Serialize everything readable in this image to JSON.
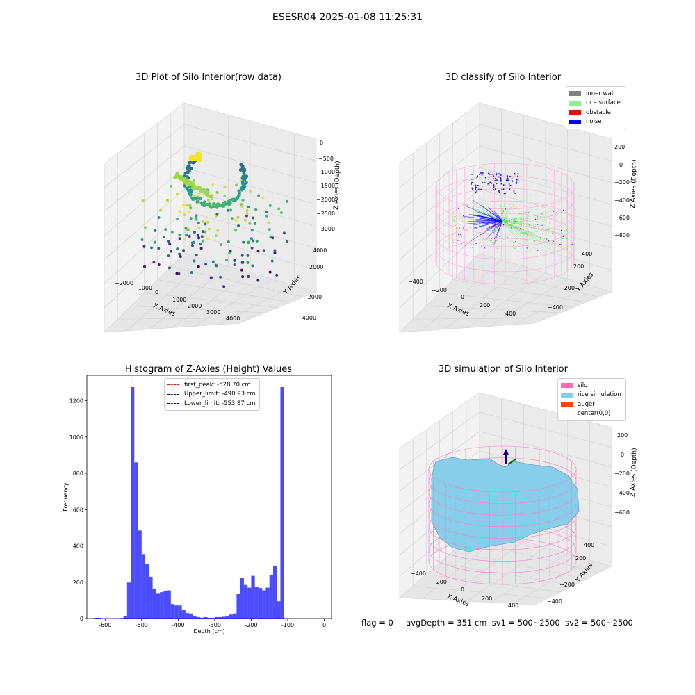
{
  "suptitle": "ESESR04 2025-01-08 11:25:31",
  "status": {
    "flag": "flag = 0",
    "avg_depth": "avgDepth = 351 cm",
    "sv1": "sv1 = 500~2500",
    "sv2": "sv2 = 500~2500"
  },
  "chart_data": [
    {
      "type": "scatter",
      "title": "3D Plot of Silo Interior(row data)",
      "xlabel": "X Axies",
      "ylabel": "Y Axies",
      "zlabel": "Z Axies (Depth)",
      "x_ticks": [
        "−2000",
        "−1000",
        "0",
        "1000",
        "2000",
        "3000",
        "4000"
      ],
      "y_ticks": [
        "−4000",
        "−2000",
        "0",
        "2000",
        "4000"
      ],
      "z_ticks": [
        "0",
        "−500",
        "−1000",
        "−1500",
        "−2000",
        "−2500",
        "−3000"
      ],
      "colormap": "viridis"
    },
    {
      "type": "scatter",
      "title": "3D classify of Silo Interior",
      "xlabel": "X Axies",
      "ylabel": "Y Axies",
      "zlabel": "Z Axies (Depth)",
      "x_ticks": [
        "−400",
        "−200",
        "0",
        "200",
        "400"
      ],
      "y_ticks": [
        "−400",
        "−200",
        "0",
        "200",
        "400"
      ],
      "z_ticks": [
        "200",
        "0",
        "−200",
        "−400",
        "−600",
        "−800"
      ],
      "legend": [
        {
          "label": "inner wall",
          "color": "#808080"
        },
        {
          "label": "rice surface",
          "color": "#90ee90"
        },
        {
          "label": "obstacle",
          "color": "#ff0000"
        },
        {
          "label": "noise",
          "color": "#0000ff"
        }
      ],
      "legend_position": "top-right"
    },
    {
      "type": "bar",
      "title": "Histogram of Z-Axies (Height) Values",
      "xlabel": "Depth (cm)",
      "ylabel": "Frequency",
      "xlim": [
        -650,
        20
      ],
      "ylim": [
        0,
        1340
      ],
      "x_ticks": [
        -600,
        -500,
        -400,
        -300,
        -200,
        -100,
        0
      ],
      "y_ticks": [
        0,
        200,
        400,
        600,
        800,
        1000,
        1200
      ],
      "bar_color": "#0000ff",
      "bin_width": 10,
      "bin_starts": [
        -630,
        -620,
        -570,
        -560,
        -550,
        -540,
        -530,
        -520,
        -510,
        -500,
        -490,
        -480,
        -470,
        -460,
        -450,
        -440,
        -430,
        -420,
        -410,
        -400,
        -390,
        -380,
        -370,
        -360,
        -350,
        -340,
        -330,
        -320,
        -310,
        -300,
        -290,
        -280,
        -270,
        -260,
        -250,
        -240,
        -230,
        -220,
        -210,
        -200,
        -190,
        -180,
        -170,
        -160,
        -150,
        -140,
        -130,
        -120,
        -110,
        -100,
        -90,
        -80,
        -70,
        -60,
        -50,
        -40,
        -30,
        -20,
        -10
      ],
      "counts": [
        4,
        4,
        2,
        3,
        14,
        198,
        1275,
        860,
        485,
        355,
        302,
        230,
        165,
        140,
        145,
        152,
        155,
        80,
        72,
        72,
        48,
        30,
        28,
        14,
        8,
        5,
        8,
        4,
        4,
        8,
        8,
        10,
        12,
        22,
        28,
        135,
        225,
        185,
        170,
        235,
        175,
        168,
        155,
        170,
        240,
        290,
        95,
        1275,
        0,
        0,
        0,
        0,
        0,
        0,
        0,
        0,
        0,
        0,
        0
      ],
      "vlines": [
        {
          "label": "first_peak: -528.70 cm",
          "value": -528.7,
          "color": "#ff0000"
        },
        {
          "label": "Upper_limit: -490.93 cm",
          "value": -490.93,
          "color": "#00008b"
        },
        {
          "label": "Lower_limit: -553.87 cm",
          "value": -553.87,
          "color": "#00008b"
        }
      ],
      "legend_position": "top-center"
    },
    {
      "type": "area",
      "title": "3D simulation of Silo Interior",
      "xlabel": "X Axies",
      "ylabel": "Y Axies",
      "zlabel": "Z Axies (Depth)",
      "x_ticks": [
        "−400",
        "−200",
        "0",
        "200",
        "400"
      ],
      "y_ticks": [
        "−400",
        "−200",
        "0",
        "200",
        "400"
      ],
      "z_ticks": [
        "200",
        "0",
        "−200",
        "−400",
        "−600"
      ],
      "legend": [
        {
          "label": "silo",
          "color": "#ff69b4"
        },
        {
          "label": "rice simulation",
          "color": "#87ceeb"
        },
        {
          "label": "auger",
          "color": "#ff4500"
        },
        {
          "label": "center(0,0)",
          "color": "#ffffff"
        }
      ],
      "legend_position": "top-right"
    }
  ]
}
